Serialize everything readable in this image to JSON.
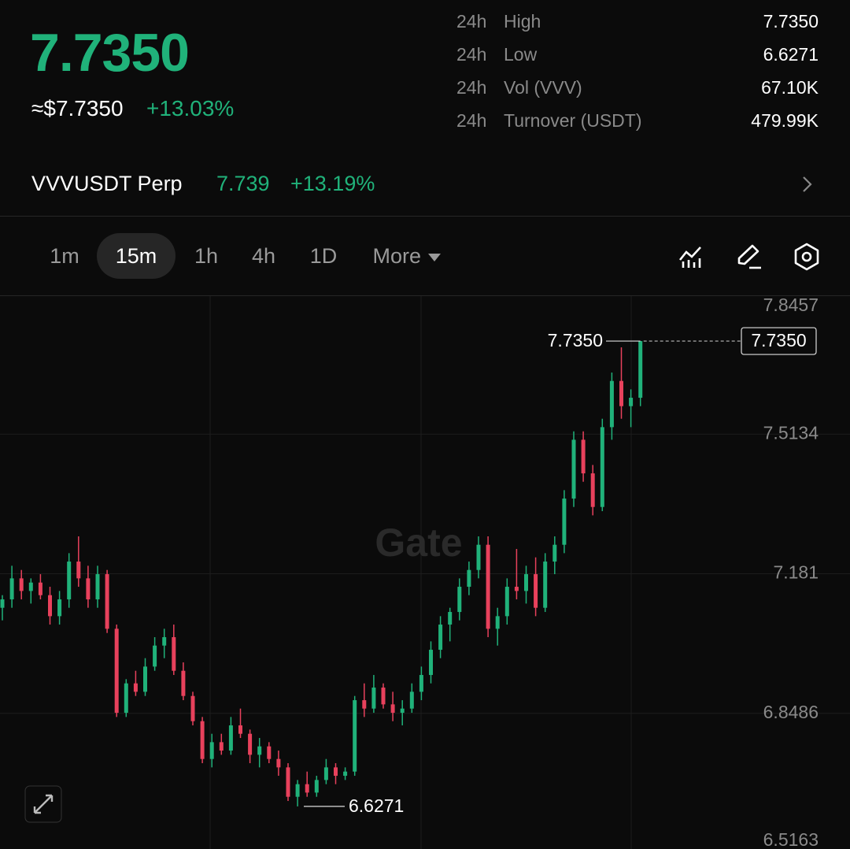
{
  "header": {
    "price": "7.7350",
    "usd_price": "≈$7.7350",
    "change": "+13.03%",
    "stats": [
      {
        "period": "24h",
        "label": "High",
        "value": "7.7350"
      },
      {
        "period": "24h",
        "label": "Low",
        "value": "6.6271"
      },
      {
        "period": "24h",
        "label": "Vol (VVV)",
        "value": "67.10K"
      },
      {
        "period": "24h",
        "label": "Turnover (USDT)",
        "value": "479.99K"
      }
    ]
  },
  "perp": {
    "name": "VVVUSDT Perp",
    "price": "7.739",
    "change": "+13.19%"
  },
  "timeframes": {
    "items": [
      "1m",
      "15m",
      "1h",
      "4h",
      "1D"
    ],
    "more": "More"
  },
  "chart_data": {
    "type": "candlestick",
    "watermark": "Gate",
    "up_color": "#20b27a",
    "down_color": "#e8415c",
    "ylim": [
      6.5163,
      7.8457
    ],
    "yticks": [
      6.5163,
      6.8486,
      7.181,
      7.5134,
      7.8457
    ],
    "high": {
      "value": 7.735,
      "label": "7.7350"
    },
    "low": 6.6271,
    "last": {
      "value": 7.735,
      "label": "7.7350"
    },
    "candles": [
      [
        7.1,
        7.13,
        7.07,
        7.12
      ],
      [
        7.12,
        7.2,
        7.1,
        7.17
      ],
      [
        7.17,
        7.19,
        7.12,
        7.14
      ],
      [
        7.14,
        7.17,
        7.11,
        7.16
      ],
      [
        7.16,
        7.18,
        7.12,
        7.13
      ],
      [
        7.13,
        7.15,
        7.06,
        7.08
      ],
      [
        7.08,
        7.14,
        7.06,
        7.12
      ],
      [
        7.12,
        7.23,
        7.1,
        7.21
      ],
      [
        7.21,
        7.27,
        7.15,
        7.17
      ],
      [
        7.17,
        7.2,
        7.1,
        7.12
      ],
      [
        7.12,
        7.2,
        7.1,
        7.18
      ],
      [
        7.18,
        7.19,
        7.04,
        7.05
      ],
      [
        7.05,
        7.06,
        6.84,
        6.85
      ],
      [
        6.85,
        6.93,
        6.84,
        6.92
      ],
      [
        6.92,
        6.95,
        6.89,
        6.9
      ],
      [
        6.9,
        6.98,
        6.89,
        6.96
      ],
      [
        6.96,
        7.03,
        6.95,
        7.01
      ],
      [
        7.01,
        7.05,
        6.98,
        7.03
      ],
      [
        7.03,
        7.06,
        6.94,
        6.95
      ],
      [
        6.95,
        6.97,
        6.88,
        6.89
      ],
      [
        6.89,
        6.9,
        6.82,
        6.83
      ],
      [
        6.83,
        6.84,
        6.73,
        6.74
      ],
      [
        6.74,
        6.8,
        6.72,
        6.78
      ],
      [
        6.78,
        6.8,
        6.75,
        6.76
      ],
      [
        6.76,
        6.84,
        6.75,
        6.82
      ],
      [
        6.82,
        6.86,
        6.79,
        6.8
      ],
      [
        6.8,
        6.81,
        6.73,
        6.75
      ],
      [
        6.75,
        6.79,
        6.72,
        6.77
      ],
      [
        6.77,
        6.78,
        6.73,
        6.74
      ],
      [
        6.74,
        6.76,
        6.7,
        6.72
      ],
      [
        6.72,
        6.73,
        6.64,
        6.65
      ],
      [
        6.65,
        6.69,
        6.6271,
        6.68
      ],
      [
        6.68,
        6.71,
        6.65,
        6.66
      ],
      [
        6.66,
        6.7,
        6.65,
        6.69
      ],
      [
        6.69,
        6.74,
        6.68,
        6.72
      ],
      [
        6.72,
        6.73,
        6.68,
        6.7
      ],
      [
        6.7,
        6.72,
        6.69,
        6.71
      ],
      [
        6.71,
        6.89,
        6.7,
        6.88
      ],
      [
        6.88,
        6.92,
        6.84,
        6.86
      ],
      [
        6.86,
        6.94,
        6.85,
        6.91
      ],
      [
        6.91,
        6.92,
        6.86,
        6.87
      ],
      [
        6.87,
        6.9,
        6.83,
        6.85
      ],
      [
        6.85,
        6.88,
        6.82,
        6.86
      ],
      [
        6.86,
        6.92,
        6.85,
        6.9
      ],
      [
        6.9,
        6.96,
        6.88,
        6.94
      ],
      [
        6.94,
        7.02,
        6.92,
        7.0
      ],
      [
        7.0,
        7.08,
        6.98,
        7.06
      ],
      [
        7.06,
        7.1,
        7.02,
        7.09
      ],
      [
        7.09,
        7.17,
        7.07,
        7.15
      ],
      [
        7.15,
        7.21,
        7.13,
        7.19
      ],
      [
        7.19,
        7.27,
        7.17,
        7.25
      ],
      [
        7.25,
        7.27,
        7.03,
        7.05
      ],
      [
        7.05,
        7.1,
        7.01,
        7.08
      ],
      [
        7.08,
        7.17,
        7.06,
        7.15
      ],
      [
        7.15,
        7.24,
        7.12,
        7.14
      ],
      [
        7.14,
        7.2,
        7.11,
        7.18
      ],
      [
        7.18,
        7.22,
        7.08,
        7.1
      ],
      [
        7.1,
        7.23,
        7.09,
        7.21
      ],
      [
        7.21,
        7.27,
        7.18,
        7.25
      ],
      [
        7.25,
        7.38,
        7.23,
        7.36
      ],
      [
        7.36,
        7.52,
        7.34,
        7.5
      ],
      [
        7.5,
        7.52,
        7.4,
        7.42
      ],
      [
        7.42,
        7.44,
        7.32,
        7.34
      ],
      [
        7.34,
        7.55,
        7.33,
        7.53
      ],
      [
        7.53,
        7.66,
        7.5,
        7.64
      ],
      [
        7.64,
        7.72,
        7.55,
        7.58
      ],
      [
        7.58,
        7.62,
        7.53,
        7.6
      ],
      [
        7.6,
        7.735,
        7.58,
        7.735
      ]
    ]
  }
}
